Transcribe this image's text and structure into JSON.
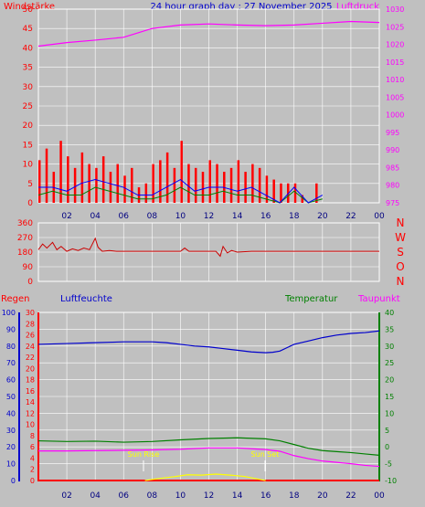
{
  "header": {
    "left_label": "Windstärke",
    "title": "24 hour graph day : 27 November 2025",
    "right_label": "Luftdruck"
  },
  "colors": {
    "background": "#c0c0c0",
    "grid": "#ffffff",
    "wind": "#ff0000",
    "gust": "#0000ff",
    "wind_low": "#008000",
    "pressure": "#ff00ff",
    "direction": "#cc0000",
    "rain": "#ff0000",
    "humidity": "#0000cc",
    "temperature": "#008000",
    "dewpoint": "#ff00ff",
    "sun": "#ffff00",
    "axis_blue": "#0000cc"
  },
  "chart_data": [
    {
      "type": "line",
      "title": "24 hour graph day : 27 November 2025",
      "x_ticks": [
        "02",
        "04",
        "06",
        "08",
        "10",
        "12",
        "14",
        "16",
        "18",
        "20",
        "22",
        "00"
      ],
      "y_left_label": "Windstärke",
      "y_left_ticks": [
        "0",
        "5",
        "10",
        "15",
        "20",
        "25",
        "30",
        "35",
        "40",
        "45",
        "50"
      ],
      "y_left_range": [
        0,
        50
      ],
      "y_right_label": "Luftdruck",
      "y_right_ticks": [
        "975",
        "980",
        "985",
        "990",
        "995",
        "1000",
        "1005",
        "1010",
        "1015",
        "1020",
        "1025",
        "1030"
      ],
      "y_right_range": [
        975,
        1030
      ],
      "grid": true,
      "series": [
        {
          "name": "Luftdruck",
          "axis": "right",
          "x": [
            0,
            2,
            4,
            6,
            8,
            10,
            12,
            14,
            16,
            18,
            20,
            22,
            24
          ],
          "y": [
            1019.5,
            1020.5,
            1021.2,
            1022,
            1024.5,
            1025.5,
            1025.8,
            1025.5,
            1025.3,
            1025.5,
            1026,
            1026.5,
            1026.2
          ]
        },
        {
          "axis": "left",
          "x": [
            0,
            0.5,
            1,
            1.5,
            2,
            2.5,
            3,
            3.5,
            4,
            4.5,
            5,
            5.5,
            6,
            6.5,
            7,
            7.5,
            8,
            8.5,
            9,
            9.5,
            10,
            10.5,
            11,
            11.5,
            12,
            12.5,
            13,
            13.5,
            14,
            14.5,
            15,
            15.5,
            16,
            16.5,
            17,
            17.5,
            18,
            18.5,
            19,
            19.5,
            20
          ],
          "y": [
            11,
            14,
            8,
            16,
            12,
            9,
            13,
            10,
            9,
            12,
            8,
            10,
            7,
            9,
            4,
            5,
            10,
            11,
            13,
            9,
            16,
            10,
            9,
            8,
            11,
            10,
            8,
            9,
            11,
            8,
            10,
            9,
            7,
            6,
            5,
            5,
            5,
            2,
            0,
            5,
            0
          ]
        },
        {
          "axis": "left",
          "x": [
            0,
            1,
            2,
            3,
            4,
            5,
            6,
            7,
            8,
            9,
            10,
            11,
            12,
            13,
            14,
            15,
            16,
            17,
            18,
            19,
            20
          ],
          "y": [
            2,
            3,
            2,
            2,
            4,
            3,
            2,
            1,
            1,
            2,
            4,
            2,
            2,
            3,
            2,
            2,
            1,
            0,
            3,
            0,
            1
          ]
        },
        {
          "axis": "left",
          "x": [
            0,
            1,
            2,
            3,
            4,
            5,
            6,
            7,
            8,
            9,
            10,
            11,
            12,
            13,
            14,
            15,
            16,
            17,
            18,
            19,
            20
          ],
          "y": [
            4,
            4,
            3,
            5,
            6,
            5,
            4,
            2,
            2,
            4,
            6,
            3,
            4,
            4,
            3,
            4,
            2,
            0,
            4,
            0,
            2
          ]
        }
      ]
    },
    {
      "type": "line",
      "x_ticks": [
        "02",
        "04",
        "06",
        "08",
        "10",
        "12",
        "14",
        "16",
        "18",
        "20",
        "22",
        "00"
      ],
      "y_left_ticks": [
        "0",
        "90",
        "180",
        "270",
        "360"
      ],
      "y_left_range": [
        0,
        360
      ],
      "y_right_ticks": [
        "N",
        "W",
        "S",
        "O",
        "N"
      ],
      "grid": true,
      "series": [
        {
          "axis": "left",
          "x": [
            0,
            0.3,
            0.6,
            1,
            1.3,
            1.6,
            2,
            2.4,
            2.8,
            3.2,
            3.6,
            4,
            4.2,
            4.5,
            5,
            5.5,
            6,
            7,
            8,
            9,
            10,
            10.3,
            10.6,
            11,
            12,
            12.5,
            12.8,
            13,
            13.3,
            13.6,
            14,
            15,
            16,
            18,
            20,
            22,
            24
          ],
          "y": [
            195,
            230,
            205,
            240,
            195,
            215,
            185,
            200,
            190,
            205,
            195,
            265,
            210,
            185,
            190,
            185,
            185,
            185,
            185,
            185,
            185,
            205,
            185,
            185,
            185,
            185,
            155,
            215,
            175,
            190,
            180,
            185,
            185,
            185,
            185,
            185,
            185
          ]
        }
      ]
    },
    {
      "type": "line",
      "x_ticks": [
        "02",
        "04",
        "06",
        "08",
        "10",
        "12",
        "14",
        "16",
        "18",
        "20",
        "22",
        "00"
      ],
      "grid": true,
      "labels": {
        "rain": "Regen",
        "humidity": "Luftfeuchte",
        "temperature": "Temperatur",
        "dewpoint": "Taupunkt"
      },
      "annotations": [
        "Sun Rise",
        "Sun Set"
      ],
      "axes": {
        "humidity": {
          "range": [
            0,
            100
          ],
          "ticks": [
            "0",
            "10",
            "20",
            "30",
            "40",
            "50",
            "60",
            "70",
            "80",
            "90",
            "100"
          ]
        },
        "rain": {
          "range": [
            0,
            30
          ],
          "ticks": [
            "0",
            "2",
            "4",
            "6",
            "8",
            "10",
            "12",
            "14",
            "16",
            "18",
            "20",
            "22",
            "24",
            "26",
            "28",
            "30"
          ]
        },
        "temperature": {
          "range": [
            -10,
            40
          ],
          "ticks": [
            "-10",
            "-5",
            "0",
            "5",
            "10",
            "15",
            "20",
            "25",
            "30",
            "35",
            "40"
          ]
        }
      },
      "series": [
        {
          "name": "Luftfeuchte",
          "axis": "humidity",
          "x": [
            0,
            2,
            4,
            6,
            8,
            9,
            10,
            11,
            12,
            13,
            14,
            15,
            16,
            16.5,
            17,
            17.5,
            18,
            19,
            20,
            21,
            22,
            23,
            24
          ],
          "y": [
            81,
            81.5,
            82,
            82.5,
            82.5,
            82,
            81,
            80,
            79.5,
            78.5,
            77.5,
            76.5,
            76,
            76.3,
            77,
            79,
            81,
            83,
            85,
            86.5,
            87.5,
            88,
            89
          ]
        },
        {
          "name": "Temperatur",
          "axis": "temperature",
          "x": [
            0,
            2,
            4,
            6,
            8,
            10,
            12,
            14,
            16,
            17,
            18,
            19,
            20,
            21,
            22,
            23,
            24
          ],
          "y": [
            1.8,
            1.6,
            1.7,
            1.4,
            1.6,
            2.1,
            2.5,
            2.7,
            2.4,
            1.8,
            0.7,
            -0.4,
            -1.1,
            -1.4,
            -1.7,
            -2.1,
            -2.5
          ]
        },
        {
          "name": "Taupunkt",
          "axis": "temperature",
          "x": [
            0,
            2,
            4,
            6,
            8,
            10,
            12,
            14,
            16,
            17,
            18,
            19,
            20,
            21,
            22,
            23,
            24
          ],
          "y": [
            -1.2,
            -1.2,
            -1.1,
            -1.0,
            -0.9,
            -0.7,
            -0.3,
            -0.3,
            -0.8,
            -1.3,
            -2.6,
            -3.5,
            -4.2,
            -4.6,
            -5.0,
            -5.5,
            -5.8
          ]
        },
        {
          "name": "Regen",
          "axis": "rain",
          "x": [
            0,
            24
          ],
          "y": [
            0,
            0
          ]
        },
        {
          "axis": "temperature",
          "x": [
            7.5,
            8.5,
            9.5,
            10.5,
            11.5,
            12.5,
            13.5,
            14.5,
            15.5,
            16
          ],
          "y": [
            -10,
            -9.4,
            -8.9,
            -8.3,
            -8.4,
            -8.1,
            -8.4,
            -8.8,
            -9.6,
            -10
          ]
        }
      ],
      "sunrise_hour": 7.5,
      "sunset_hour": 16
    }
  ]
}
